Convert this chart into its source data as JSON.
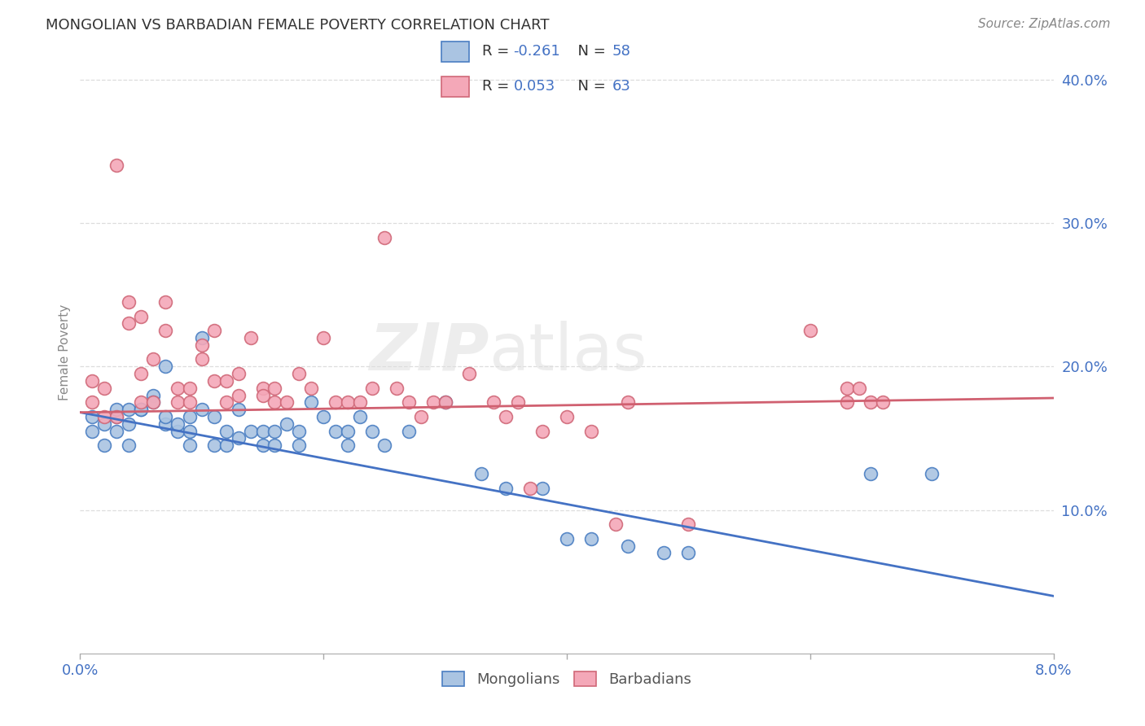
{
  "title": "MONGOLIAN VS BARBADIAN FEMALE POVERTY CORRELATION CHART",
  "source": "Source: ZipAtlas.com",
  "ylabel": "Female Poverty",
  "ylim": [
    0.0,
    0.42
  ],
  "xlim": [
    0.0,
    0.08
  ],
  "ytick_vals": [
    0.1,
    0.2,
    0.3,
    0.4
  ],
  "ytick_labels": [
    "10.0%",
    "20.0%",
    "30.0%",
    "40.0%"
  ],
  "xtick_vals": [
    0.0,
    0.02,
    0.04,
    0.06,
    0.08
  ],
  "xtick_labels_left": "0.0%",
  "xtick_labels_right": "8.0%",
  "mongolian_color": "#aac4e2",
  "mongolian_edge_color": "#4a7ec2",
  "barbadian_color": "#f4a8b8",
  "barbadian_edge_color": "#d06878",
  "mongolian_line_color": "#4472c4",
  "barbadian_line_color": "#d06070",
  "tick_color": "#4472c4",
  "ylabel_color": "#888888",
  "title_color": "#333333",
  "source_color": "#888888",
  "watermark": "ZIPatlas",
  "watermark_color": "#dddddd",
  "background_color": "#ffffff",
  "grid_color": "#dddddd",
  "legend_edge_color": "#cccccc",
  "legend_r1_label": "R = -0.261",
  "legend_n1_label": "N = 58",
  "legend_r2_label": "R = 0.053",
  "legend_n2_label": "N = 63",
  "legend_value_color": "#4472c4",
  "legend_text_color": "#333333",
  "mong_line_x0": 0.0,
  "mong_line_x1": 0.08,
  "mong_line_y0": 0.168,
  "mong_line_y1": 0.04,
  "barb_line_x0": 0.0,
  "barb_line_x1": 0.08,
  "barb_line_y0": 0.168,
  "barb_line_y1": 0.178,
  "mongolians_x": [
    0.001,
    0.001,
    0.002,
    0.002,
    0.003,
    0.003,
    0.003,
    0.004,
    0.004,
    0.004,
    0.005,
    0.005,
    0.006,
    0.006,
    0.007,
    0.007,
    0.007,
    0.008,
    0.008,
    0.009,
    0.009,
    0.009,
    0.01,
    0.01,
    0.011,
    0.011,
    0.012,
    0.012,
    0.013,
    0.013,
    0.014,
    0.015,
    0.015,
    0.016,
    0.016,
    0.017,
    0.018,
    0.018,
    0.019,
    0.02,
    0.021,
    0.022,
    0.022,
    0.023,
    0.024,
    0.025,
    0.027,
    0.03,
    0.033,
    0.035,
    0.038,
    0.04,
    0.042,
    0.045,
    0.048,
    0.05,
    0.065,
    0.07
  ],
  "mongolians_y": [
    0.165,
    0.155,
    0.16,
    0.145,
    0.155,
    0.165,
    0.17,
    0.145,
    0.17,
    0.16,
    0.17,
    0.17,
    0.18,
    0.175,
    0.16,
    0.165,
    0.2,
    0.155,
    0.16,
    0.165,
    0.155,
    0.145,
    0.22,
    0.17,
    0.145,
    0.165,
    0.145,
    0.155,
    0.15,
    0.17,
    0.155,
    0.155,
    0.145,
    0.145,
    0.155,
    0.16,
    0.145,
    0.155,
    0.175,
    0.165,
    0.155,
    0.145,
    0.155,
    0.165,
    0.155,
    0.145,
    0.155,
    0.175,
    0.125,
    0.115,
    0.115,
    0.08,
    0.08,
    0.075,
    0.07,
    0.07,
    0.125,
    0.125
  ],
  "barbadians_x": [
    0.001,
    0.001,
    0.002,
    0.002,
    0.003,
    0.003,
    0.004,
    0.004,
    0.005,
    0.005,
    0.005,
    0.006,
    0.006,
    0.007,
    0.007,
    0.008,
    0.008,
    0.009,
    0.009,
    0.01,
    0.01,
    0.011,
    0.011,
    0.012,
    0.012,
    0.013,
    0.013,
    0.014,
    0.015,
    0.015,
    0.016,
    0.016,
    0.017,
    0.018,
    0.019,
    0.02,
    0.021,
    0.022,
    0.023,
    0.024,
    0.025,
    0.026,
    0.027,
    0.028,
    0.029,
    0.03,
    0.032,
    0.034,
    0.035,
    0.036,
    0.037,
    0.038,
    0.04,
    0.042,
    0.044,
    0.045,
    0.05,
    0.06,
    0.063,
    0.063,
    0.064,
    0.065,
    0.066
  ],
  "barbadians_y": [
    0.19,
    0.175,
    0.165,
    0.185,
    0.34,
    0.165,
    0.245,
    0.23,
    0.235,
    0.195,
    0.175,
    0.205,
    0.175,
    0.245,
    0.225,
    0.175,
    0.185,
    0.175,
    0.185,
    0.205,
    0.215,
    0.19,
    0.225,
    0.175,
    0.19,
    0.195,
    0.18,
    0.22,
    0.185,
    0.18,
    0.185,
    0.175,
    0.175,
    0.195,
    0.185,
    0.22,
    0.175,
    0.175,
    0.175,
    0.185,
    0.29,
    0.185,
    0.175,
    0.165,
    0.175,
    0.175,
    0.195,
    0.175,
    0.165,
    0.175,
    0.115,
    0.155,
    0.165,
    0.155,
    0.09,
    0.175,
    0.09,
    0.225,
    0.175,
    0.185,
    0.185,
    0.175,
    0.175
  ]
}
